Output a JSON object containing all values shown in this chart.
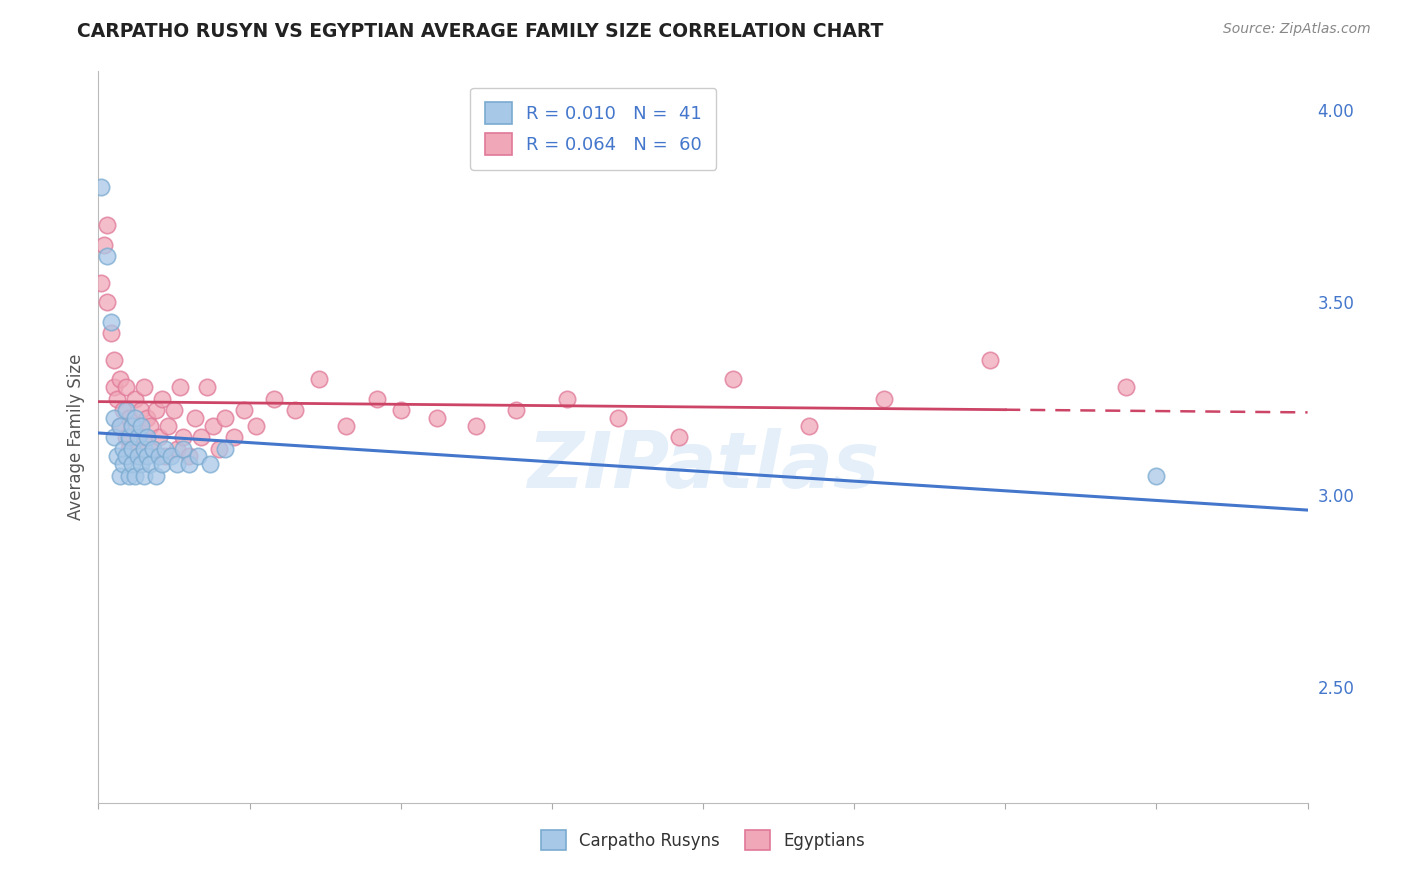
{
  "title": "CARPATHO RUSYN VS EGYPTIAN AVERAGE FAMILY SIZE CORRELATION CHART",
  "source": "Source: ZipAtlas.com",
  "ylabel": "Average Family Size",
  "xlim": [
    0.0,
    0.4
  ],
  "ylim": [
    2.2,
    4.1
  ],
  "yticks_right": [
    2.5,
    3.0,
    3.5,
    4.0
  ],
  "grid_color": "#d0d0d0",
  "background_color": "#ffffff",
  "watermark": "ZIPatlas",
  "legend_r1": "R = 0.010",
  "legend_n1": "N =  41",
  "legend_r2": "R = 0.064",
  "legend_n2": "N =  60",
  "blue_scatter_face": "#a8c8e8",
  "blue_scatter_edge": "#7aaad0",
  "pink_scatter_face": "#f0a8b8",
  "pink_scatter_edge": "#e07898",
  "blue_line_color": "#4477cc",
  "pink_line_color": "#cc4466",
  "blue_line_solid_end": 0.4,
  "pink_line_solid_end": 0.3,
  "carpatho_x": [
    0.001,
    0.003,
    0.004,
    0.005,
    0.005,
    0.006,
    0.007,
    0.007,
    0.008,
    0.008,
    0.009,
    0.009,
    0.01,
    0.01,
    0.011,
    0.011,
    0.011,
    0.012,
    0.012,
    0.013,
    0.013,
    0.014,
    0.014,
    0.015,
    0.015,
    0.016,
    0.016,
    0.017,
    0.018,
    0.019,
    0.02,
    0.021,
    0.022,
    0.024,
    0.026,
    0.028,
    0.03,
    0.033,
    0.037,
    0.042,
    0.35
  ],
  "carpatho_y": [
    3.8,
    3.62,
    3.45,
    3.2,
    3.15,
    3.1,
    3.18,
    3.05,
    3.12,
    3.08,
    3.22,
    3.1,
    3.15,
    3.05,
    3.18,
    3.08,
    3.12,
    3.05,
    3.2,
    3.1,
    3.15,
    3.08,
    3.18,
    3.12,
    3.05,
    3.1,
    3.15,
    3.08,
    3.12,
    3.05,
    3.1,
    3.08,
    3.12,
    3.1,
    3.08,
    3.12,
    3.08,
    3.1,
    3.08,
    3.12,
    3.05
  ],
  "egyptian_x": [
    0.001,
    0.002,
    0.003,
    0.003,
    0.004,
    0.005,
    0.005,
    0.006,
    0.007,
    0.007,
    0.008,
    0.009,
    0.009,
    0.01,
    0.01,
    0.011,
    0.012,
    0.013,
    0.014,
    0.015,
    0.015,
    0.016,
    0.017,
    0.018,
    0.019,
    0.02,
    0.021,
    0.022,
    0.023,
    0.025,
    0.026,
    0.027,
    0.028,
    0.03,
    0.032,
    0.034,
    0.036,
    0.038,
    0.04,
    0.042,
    0.045,
    0.048,
    0.052,
    0.058,
    0.065,
    0.073,
    0.082,
    0.092,
    0.1,
    0.112,
    0.125,
    0.138,
    0.155,
    0.172,
    0.192,
    0.21,
    0.235,
    0.26,
    0.295,
    0.34
  ],
  "egyptian_y": [
    3.55,
    3.65,
    3.7,
    3.5,
    3.42,
    3.35,
    3.28,
    3.25,
    3.3,
    3.18,
    3.22,
    3.15,
    3.28,
    3.12,
    3.2,
    3.18,
    3.25,
    3.12,
    3.22,
    3.28,
    3.15,
    3.2,
    3.18,
    3.12,
    3.22,
    3.15,
    3.25,
    3.1,
    3.18,
    3.22,
    3.12,
    3.28,
    3.15,
    3.1,
    3.2,
    3.15,
    3.28,
    3.18,
    3.12,
    3.2,
    3.15,
    3.22,
    3.18,
    3.25,
    3.22,
    3.3,
    3.18,
    3.25,
    3.22,
    3.2,
    3.18,
    3.22,
    3.25,
    3.2,
    3.15,
    3.3,
    3.18,
    3.25,
    3.35,
    3.28
  ]
}
